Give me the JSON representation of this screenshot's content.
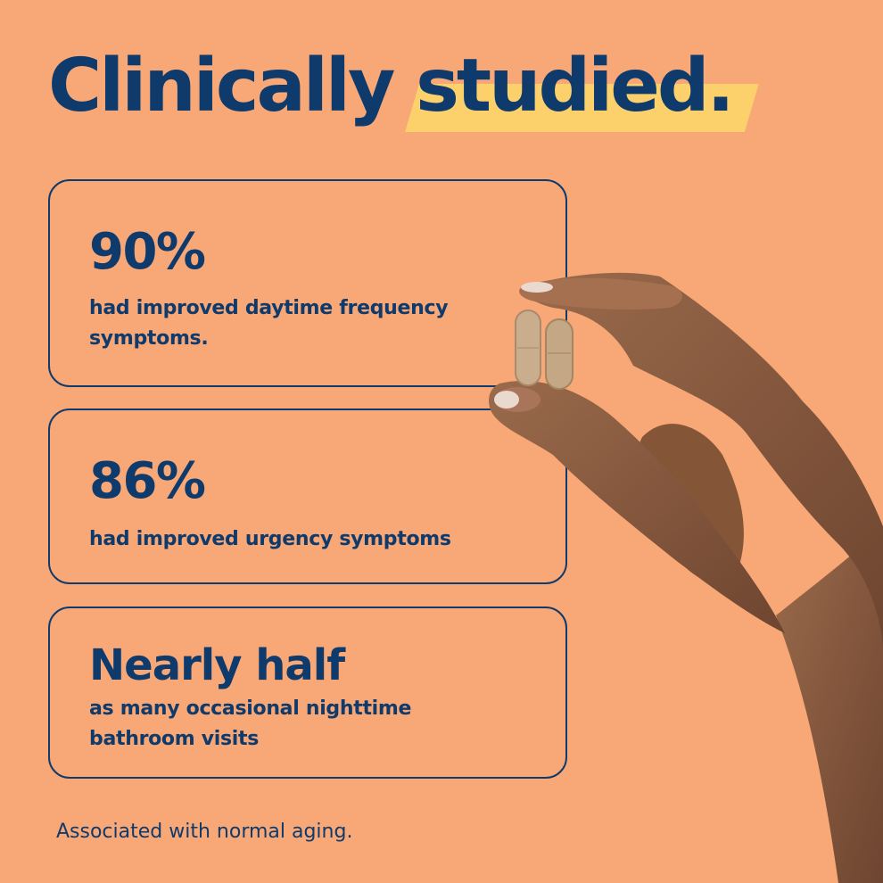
{
  "headline": {
    "plain": "Clinically",
    "highlighted": "studied."
  },
  "stats": [
    {
      "value": "90%",
      "description": "had improved daytime frequency symptoms."
    },
    {
      "value": "86%",
      "description": "had improved urgency symptoms"
    },
    {
      "value": "Nearly half",
      "description": "as many occasional nighttime bathroom visits"
    }
  ],
  "footnote": "Associated with normal aging.",
  "colors": {
    "background": "#f8a776",
    "text": "#0f3a6c",
    "highlight": "#fcd16b",
    "skin": "#8a5a3e",
    "capsule": "#c9ad8d"
  }
}
